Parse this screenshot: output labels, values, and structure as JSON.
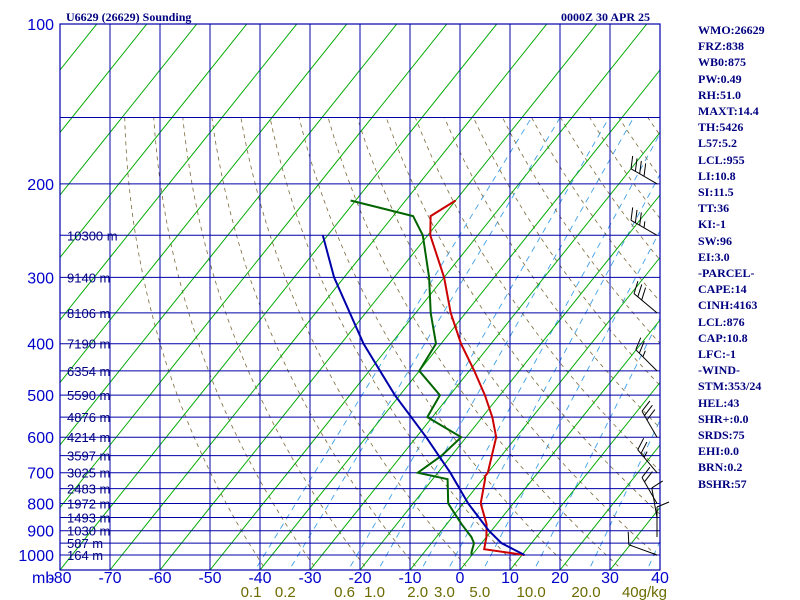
{
  "header": {
    "station": "U6629 (26629) Sounding",
    "time": "0000Z 30 APR 25"
  },
  "indices": [
    "WMO:26629",
    "FRZ:838",
    "WB0:875",
    "PW:0.49",
    "RH:51.0",
    "MAXT:14.4",
    "TH:5426",
    "L57:5.2",
    "LCL:955",
    "LI:10.8",
    "SI:11.5",
    "TT:36",
    "KI:-1",
    "SW:96",
    "EI:3.0",
    "-PARCEL-",
    "CAPE:14",
    "CINH:4163",
    "LCL:876",
    "CAP:10.8",
    "LFC:-1",
    "-WIND-",
    "STM:353/24",
    "HEL:43",
    "SHR+:0.0",
    "SRDS:75",
    "EHI:0.0",
    "BRN:0.2",
    "BSHR:57"
  ],
  "chart_data": {
    "type": "line",
    "title": "U6629 (26629) Sounding",
    "subtitle": "0000Z 30 APR 25",
    "xlabel": "",
    "ylabel": "mb",
    "y_scale": "log",
    "ylim": [
      1050,
      100
    ],
    "temperature_ticks": [
      {
        "value": -80,
        "label": "-80"
      },
      {
        "value": -70,
        "label": "-70"
      },
      {
        "value": -60,
        "label": "-60"
      },
      {
        "value": -50,
        "label": "-50"
      },
      {
        "value": -40,
        "label": "-40"
      },
      {
        "value": -30,
        "label": "-30"
      },
      {
        "value": -20,
        "label": "-20"
      },
      {
        "value": -10,
        "label": "-10"
      },
      {
        "value": 0,
        "label": "0"
      },
      {
        "value": 10,
        "label": "10"
      },
      {
        "value": 20,
        "label": "20"
      },
      {
        "value": 30,
        "label": "30"
      },
      {
        "value": 40,
        "label": "40"
      }
    ],
    "pressure_ticks": [
      {
        "value": 100,
        "label": "100"
      },
      {
        "value": 200,
        "label": "200"
      },
      {
        "value": 300,
        "label": "300"
      },
      {
        "value": 400,
        "label": "400"
      },
      {
        "value": 500,
        "label": "500"
      },
      {
        "value": 600,
        "label": "600"
      },
      {
        "value": 700,
        "label": "700"
      },
      {
        "value": 800,
        "label": "800"
      },
      {
        "value": 900,
        "label": "900"
      },
      {
        "value": 1000,
        "label": "1000"
      }
    ],
    "height_labels": [
      {
        "label": "10300 m"
      },
      {
        "label": "9140 m"
      },
      {
        "label": "8106 m"
      },
      {
        "label": "7190 m"
      },
      {
        "label": "6354 m"
      },
      {
        "label": "5590 m"
      },
      {
        "label": "4876 m"
      },
      {
        "label": "4214 m"
      },
      {
        "label": "3597 m"
      },
      {
        "label": "3025 m"
      },
      {
        "label": "2483 m"
      },
      {
        "label": "1972 m"
      },
      {
        "label": "1493 m"
      },
      {
        "label": "1030 m"
      },
      {
        "label": "587 m"
      },
      {
        "label": "164 m"
      }
    ],
    "mixing_ratio_labels": [
      {
        "value": 0.1,
        "label": "0.1"
      },
      {
        "value": 0.2,
        "label": "0.2"
      },
      {
        "value": 0.6,
        "label": "0.6"
      },
      {
        "value": 1.0,
        "label": "1.0"
      },
      {
        "value": 2.0,
        "label": "2.0"
      },
      {
        "value": 3.0,
        "label": "3.0"
      },
      {
        "value": 5.0,
        "label": "5.0"
      },
      {
        "value": 10.0,
        "label": "10.0"
      },
      {
        "value": 20.0,
        "label": "20.0"
      },
      {
        "value": 40.0,
        "label": "40g/kg"
      }
    ],
    "series": [
      {
        "key": "temperature",
        "color": "#cc0000",
        "points": [
          {
            "p": 1000,
            "t": 10.5
          },
          {
            "p": 990,
            "t": 7.0
          },
          {
            "p": 975,
            "t": 1.5
          },
          {
            "p": 925,
            "t": 0.0
          },
          {
            "p": 875,
            "t": -2.0
          },
          {
            "p": 800,
            "t": -6.5
          },
          {
            "p": 720,
            "t": -9.5
          },
          {
            "p": 710,
            "t": -10.0
          },
          {
            "p": 700,
            "t": -10.0
          },
          {
            "p": 600,
            "t": -14.0
          },
          {
            "p": 550,
            "t": -18.0
          },
          {
            "p": 500,
            "t": -23.0
          },
          {
            "p": 450,
            "t": -29.0
          },
          {
            "p": 400,
            "t": -36.0
          },
          {
            "p": 350,
            "t": -43.0
          },
          {
            "p": 300,
            "t": -50.0
          },
          {
            "p": 250,
            "t": -59.5
          },
          {
            "p": 230,
            "t": -62.5
          },
          {
            "p": 215,
            "t": -60.0
          }
        ]
      },
      {
        "key": "dewpoint",
        "color": "#006400",
        "points": [
          {
            "p": 1000,
            "t": 0.0
          },
          {
            "p": 990,
            "t": -0.5
          },
          {
            "p": 950,
            "t": -1.5
          },
          {
            "p": 925,
            "t": -3.0
          },
          {
            "p": 875,
            "t": -7.0
          },
          {
            "p": 800,
            "t": -13.0
          },
          {
            "p": 720,
            "t": -17.0
          },
          {
            "p": 700,
            "t": -24.0
          },
          {
            "p": 650,
            "t": -22.0
          },
          {
            "p": 600,
            "t": -21.0
          },
          {
            "p": 550,
            "t": -31.0
          },
          {
            "p": 500,
            "t": -32.0
          },
          {
            "p": 450,
            "t": -40.0
          },
          {
            "p": 400,
            "t": -41.0
          },
          {
            "p": 350,
            "t": -47.0
          },
          {
            "p": 300,
            "t": -53.0
          },
          {
            "p": 250,
            "t": -61.0
          },
          {
            "p": 230,
            "t": -66.0
          },
          {
            "p": 215,
            "t": -81.0
          }
        ]
      },
      {
        "key": "parcel",
        "color": "#0000aa",
        "points": [
          {
            "p": 1000,
            "t": 10.5
          },
          {
            "p": 950,
            "t": 4.0
          },
          {
            "p": 900,
            "t": -0.5
          },
          {
            "p": 800,
            "t": -9.0
          },
          {
            "p": 700,
            "t": -17.5
          },
          {
            "p": 600,
            "t": -28.0
          },
          {
            "p": 500,
            "t": -41.0
          },
          {
            "p": 400,
            "t": -55.5
          },
          {
            "p": 300,
            "t": -72.0
          },
          {
            "p": 250,
            "t": -81.0
          }
        ]
      }
    ],
    "wind_barbs": [
      {
        "p": 1000,
        "direction": 290,
        "speed_kt": 10
      },
      {
        "p": 925,
        "direction": 0,
        "speed_kt": 10
      },
      {
        "p": 850,
        "direction": 350,
        "speed_kt": 10
      },
      {
        "p": 800,
        "direction": 330,
        "speed_kt": 20
      },
      {
        "p": 700,
        "direction": 320,
        "speed_kt": 25
      },
      {
        "p": 600,
        "direction": 330,
        "speed_kt": 30
      },
      {
        "p": 450,
        "direction": 315,
        "speed_kt": 25
      },
      {
        "p": 350,
        "direction": 310,
        "speed_kt": 30
      },
      {
        "p": 250,
        "direction": 300,
        "speed_kt": 35
      },
      {
        "p": 200,
        "direction": 300,
        "speed_kt": 40
      }
    ]
  }
}
